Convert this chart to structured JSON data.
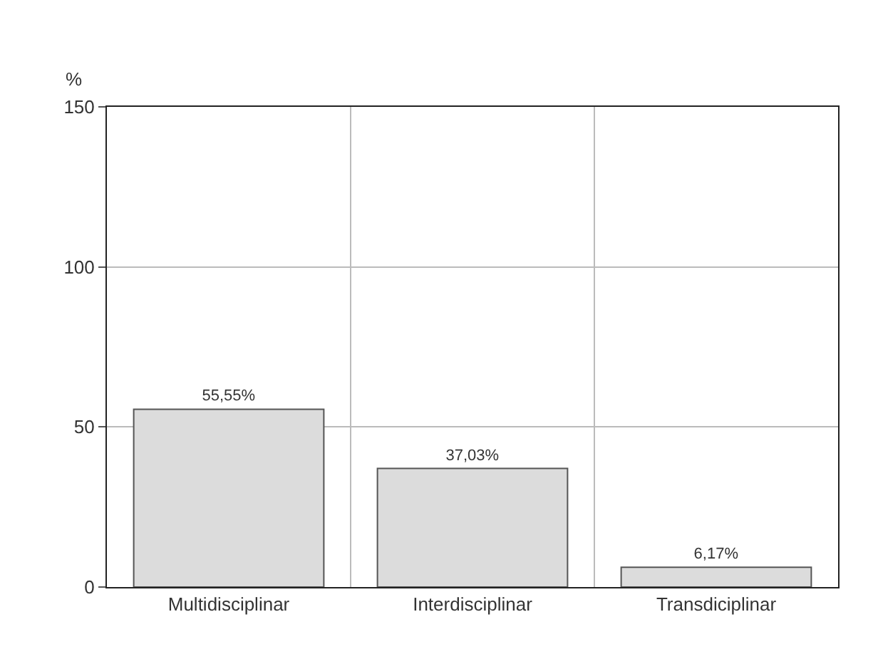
{
  "chart_data": {
    "type": "bar",
    "ylabel": "%",
    "categories": [
      "Multidisciplinar",
      "Interdisciplinar",
      "Transdiciplinar"
    ],
    "values": [
      55.55,
      37.03,
      6.17
    ],
    "value_labels": [
      "55,55%",
      "37,03%",
      "6,17%"
    ],
    "color": "#dcdcdc",
    "ylim": [
      0,
      150
    ],
    "yticks": [
      0,
      50,
      100,
      150
    ],
    "grid": true,
    "legend": false
  }
}
